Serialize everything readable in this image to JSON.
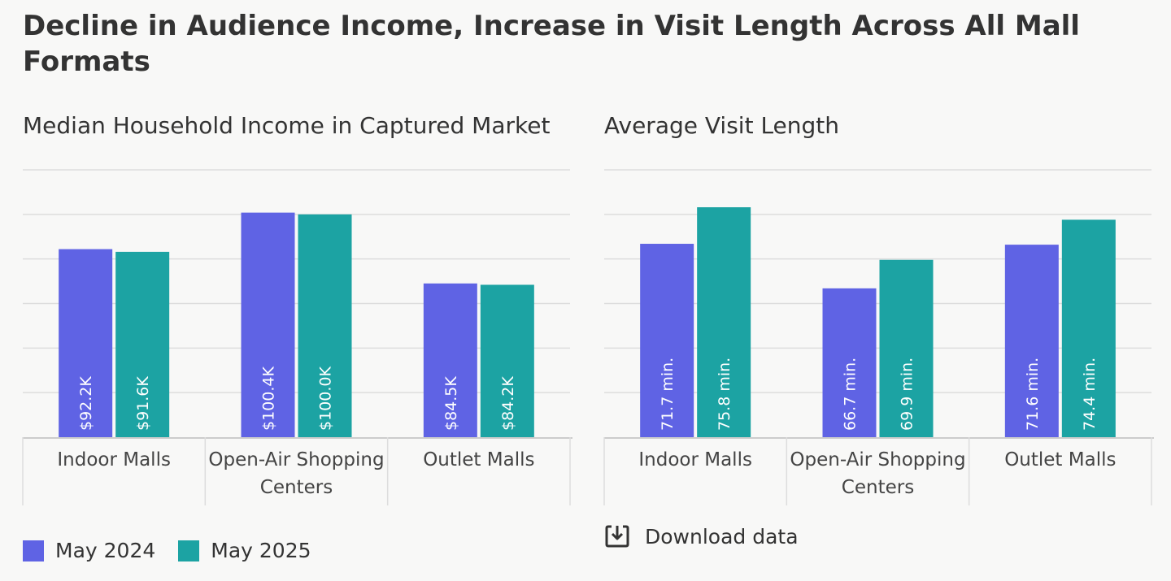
{
  "title": "Decline in Audience Income, Increase in Visit Length Across All Mall Formats",
  "colors": {
    "may_2024": "#5f63e4",
    "may_2025": "#1ca3a3",
    "grid": "#dddddd",
    "axis": "#cccccc"
  },
  "legend": {
    "items": [
      {
        "label": "May 2024",
        "color": "#5f63e4"
      },
      {
        "label": "May 2025",
        "color": "#1ca3a3"
      }
    ]
  },
  "download": {
    "label": "Download data",
    "icon": "download-icon"
  },
  "chart_data": [
    {
      "type": "bar",
      "title": "Median Household Income in Captured Market",
      "categories": [
        [
          "Indoor Malls"
        ],
        [
          "Open-Air Shopping",
          "Centers"
        ],
        [
          "Outlet Malls"
        ]
      ],
      "series": [
        {
          "name": "May 2024",
          "values": [
            92.2,
            100.4,
            84.5
          ],
          "labels": [
            "$92.2K",
            "$100.4K",
            "$84.5K"
          ]
        },
        {
          "name": "May 2025",
          "values": [
            91.6,
            100.0,
            84.2
          ],
          "labels": [
            "$91.6K",
            "$100.0K",
            "$84.2K"
          ]
        }
      ],
      "ylim": [
        50,
        110
      ],
      "grid": true,
      "legend": "bottom-left"
    },
    {
      "type": "bar",
      "title": "Average Visit Length",
      "categories": [
        [
          "Indoor Malls"
        ],
        [
          "Open-Air Shopping",
          "Centers"
        ],
        [
          "Outlet Malls"
        ]
      ],
      "series": [
        {
          "name": "May 2024",
          "values": [
            71.7,
            66.7,
            71.6
          ],
          "labels": [
            "71.7 min.",
            "66.7 min.",
            "71.6 min."
          ]
        },
        {
          "name": "May 2025",
          "values": [
            75.8,
            69.9,
            74.4
          ],
          "labels": [
            "75.8 min.",
            "69.9 min.",
            "74.4 min."
          ]
        }
      ],
      "ylim": [
        50,
        80
      ],
      "grid": true
    }
  ]
}
